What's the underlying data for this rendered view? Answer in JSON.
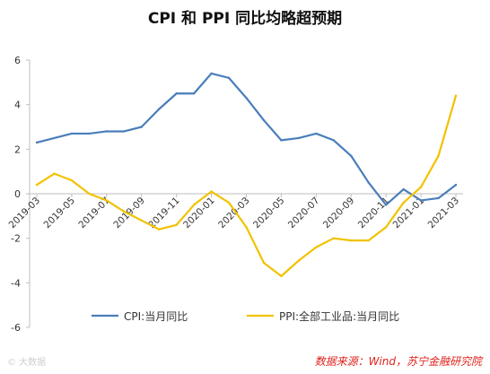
{
  "chart_data": {
    "type": "line",
    "title": "CPI 和 PPI 同比均略超预期",
    "x": [
      "2019-03",
      "2019-04",
      "2019-05",
      "2019-06",
      "2019-07",
      "2019-08",
      "2019-09",
      "2019-10",
      "2019-11",
      "2019-12",
      "2020-01",
      "2020-02",
      "2020-03",
      "2020-04",
      "2020-05",
      "2020-06",
      "2020-07",
      "2020-08",
      "2020-09",
      "2020-10",
      "2020-11",
      "2020-12",
      "2021-01",
      "2021-02",
      "2021-03"
    ],
    "tick_labels": [
      "2019-03",
      "2019-05",
      "2019-07",
      "2019-09",
      "2019-11",
      "2020-01",
      "2020-03",
      "2020-05",
      "2020-07",
      "2020-09",
      "2020-11",
      "2021-01",
      "2021-03"
    ],
    "series": [
      {
        "name": "CPI:当月同比",
        "color": "#4a7ebb",
        "values": [
          2.3,
          2.5,
          2.7,
          2.7,
          2.8,
          2.8,
          3.0,
          3.8,
          4.5,
          4.5,
          5.4,
          5.2,
          4.3,
          3.3,
          2.4,
          2.5,
          2.7,
          2.4,
          1.7,
          0.5,
          -0.5,
          0.2,
          -0.3,
          -0.2,
          0.4
        ]
      },
      {
        "name": "PPI:全部工业品:当月同比",
        "color": "#f2c200",
        "values": [
          0.4,
          0.9,
          0.6,
          0.0,
          -0.3,
          -0.8,
          -1.2,
          -1.6,
          -1.4,
          -0.5,
          0.1,
          -0.4,
          -1.5,
          -3.1,
          -3.7,
          -3.0,
          -2.4,
          -2.0,
          -2.1,
          -2.1,
          -1.5,
          -0.4,
          0.3,
          1.7,
          4.4
        ]
      }
    ],
    "y_ticks": [
      "6",
      "4",
      "2",
      "0",
      "-2",
      "-4",
      "-6"
    ],
    "ylim": [
      -6,
      6
    ],
    "grid": false,
    "legend_position": "bottom"
  },
  "source_note": "数据来源：Wind，苏宁金融研究院",
  "watermark": "© 大数据"
}
